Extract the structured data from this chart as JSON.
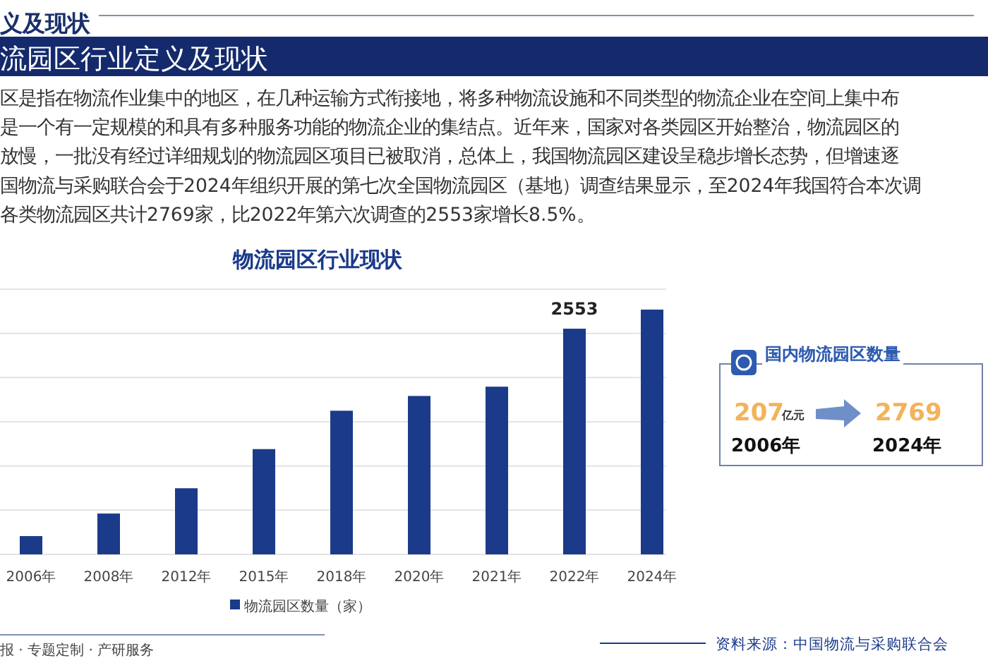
{
  "chart_data": [
    {
      "type": "bar",
      "title": "物流园区行业现状",
      "grid": "y",
      "legend": "bottom",
      "tick_labels": "x",
      "ylim": [
        0,
        3000
      ],
      "yticks": [
        {
          "value": 0,
          "label": null
        },
        {
          "value": 500,
          "label": null
        },
        {
          "value": 1000,
          "label": null
        },
        {
          "value": 1500,
          "label": null
        },
        {
          "value": 2000,
          "label": null
        },
        {
          "value": 2500,
          "label": null
        },
        {
          "value": 3000,
          "label": null
        }
      ],
      "categories": [
        "2006年",
        "2008年",
        "2012年",
        "2015年",
        "2018年",
        "2020年",
        "2021年",
        "2022年",
        "2024年"
      ],
      "series": [
        {
          "name": "物流园区数量（家）",
          "color": "#1b3a8a",
          "values": [
            207,
            462,
            748,
            1191,
            1625,
            1792,
            1897,
            2553,
            2769
          ],
          "value_labels": [
            null,
            null,
            null,
            null,
            null,
            null,
            null,
            "2553",
            null
          ]
        }
      ],
      "annotations": [
        "义及现状",
        "流园区行业定义及现状",
        "区是指在物流作业集中的地区，在几种运输方式衔接地，将多种物流设施和不同类型的物流企业在空间上集中布",
        "是一个有一定规模的和具有多种服务功能的物流企业的集结点。近年来，国家对各类园区开始整治，物流园区的",
        "放慢，一批没有经过详细规划的物流园区项目已被取消，总体上，我国物流园区建设呈稳步增长态势，但增速逐",
        "国物流与采购联合会于2024年组织开展的第七次全国物流园区（基地）调查结果显示，至2024年我国符合本次调",
        "各类物流园区共计2769家，比2022年第六次调查的2553家增长8.5%。",
        "报 · 专题定制 · 产研服务",
        "资料来源：中国物流与采购联合会"
      ]
    },
    {
      "type": "other",
      "title": "国内物流园区数量",
      "annotations": [
        "207",
        "亿元",
        "2006年",
        "2769",
        "2024年"
      ]
    }
  ]
}
